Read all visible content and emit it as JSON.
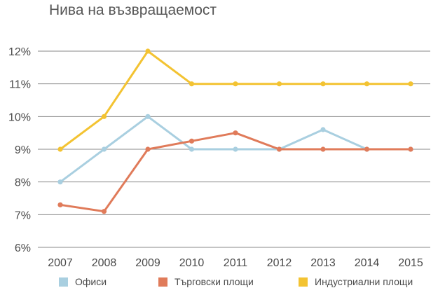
{
  "chart_data": {
    "type": "line",
    "title": "Нива на възвращаемост",
    "xlabel": "",
    "ylabel": "",
    "categories": [
      "2007",
      "2008",
      "2009",
      "2010",
      "2011",
      "2012",
      "2013",
      "2014",
      "2015"
    ],
    "ylim": [
      6,
      12
    ],
    "yticks": [
      6,
      7,
      8,
      9,
      10,
      11,
      12
    ],
    "ytick_labels": [
      "6%",
      "7%",
      "8%",
      "9%",
      "10%",
      "11%",
      "12%"
    ],
    "grid": "horizontal",
    "legend_position": "bottom",
    "series": [
      {
        "name": "Офиси",
        "color": "#a9cfe0",
        "values": [
          8.0,
          9.0,
          10.0,
          9.0,
          9.0,
          9.0,
          9.6,
          9.0,
          9.0
        ]
      },
      {
        "name": "Търговски площи",
        "color": "#e07b5a",
        "values": [
          7.3,
          7.1,
          9.0,
          9.25,
          9.5,
          9.0,
          9.0,
          9.0,
          9.0
        ]
      },
      {
        "name": "Индустриални площи",
        "color": "#f3c332",
        "values": [
          9.0,
          10.0,
          12.0,
          11.0,
          11.0,
          11.0,
          11.0,
          11.0,
          11.0
        ]
      }
    ]
  }
}
